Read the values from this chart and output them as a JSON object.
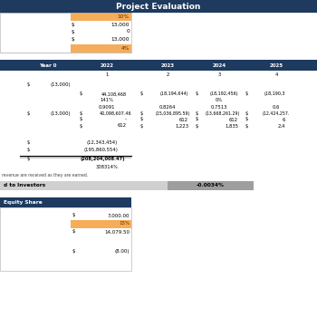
{
  "title": "Project Evaluation",
  "dark_blue": "#1e3a5f",
  "orange": "#f5ad5a",
  "white": "#ffffff",
  "light_gray": "#d0d0d0",
  "mid_gray": "#9e9e9e",
  "col_headers": [
    "Year 0",
    "2022",
    "2023",
    "2024",
    "2025"
  ],
  "col_sub": [
    "",
    "1",
    "2",
    "3",
    "4"
  ],
  "irr_label": "d to Investors",
  "irr_value": "-0.0034%",
  "equity_title": "Equity Share",
  "note": "revenue are received as they are earned.",
  "pct_row": "308314%"
}
